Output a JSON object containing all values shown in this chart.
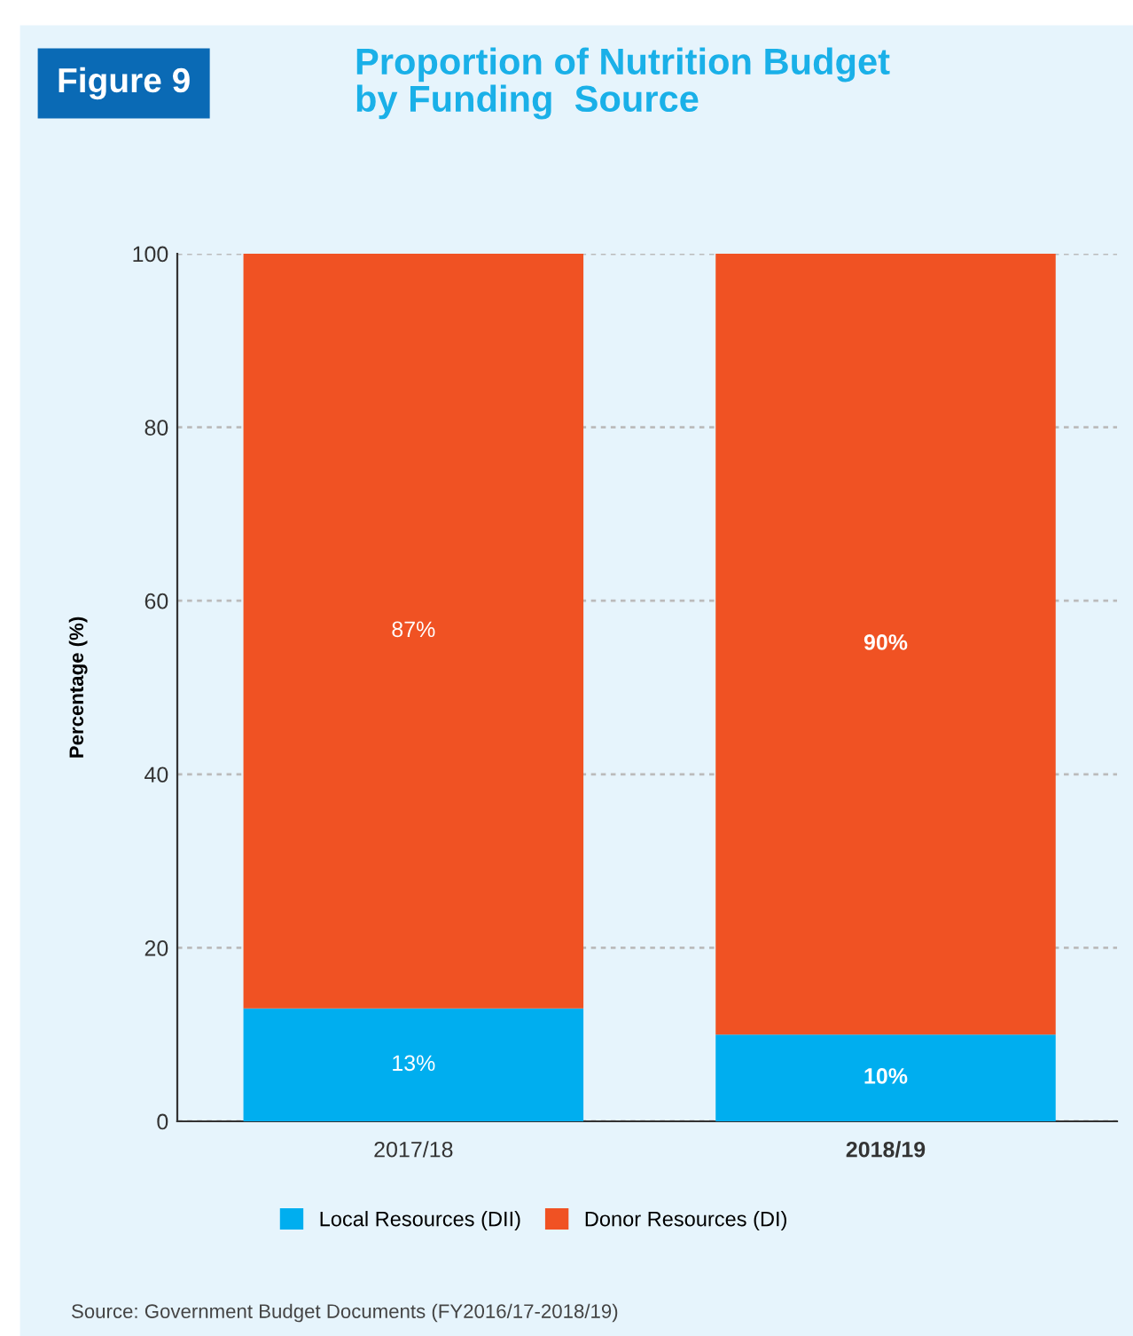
{
  "chart_data": {
    "type": "bar",
    "title": "Proportion of Nutrition Budget\nby Funding  Source",
    "ylabel": "Percentage (%)",
    "annotations": [
      "Figure 9",
      "Source: Government Budget Documents (FY2016/17-2018/19)"
    ],
    "categories": [
      "2017/18",
      "2018/19"
    ],
    "stacked": true,
    "series": [
      {
        "name": "Local Resources (DII)",
        "color": "#00aeef",
        "values": [
          13,
          10
        ],
        "value_labels": [
          "13%",
          "10%"
        ]
      },
      {
        "name": "Donor Resources (DI)",
        "color": "#f05223",
        "values": [
          87,
          90
        ],
        "value_labels": [
          "87%",
          "90%"
        ]
      }
    ],
    "ylim": [
      0,
      100
    ],
    "yticks": [
      0,
      20,
      40,
      60,
      80,
      100
    ],
    "grid": "y",
    "legend": "bottom"
  }
}
